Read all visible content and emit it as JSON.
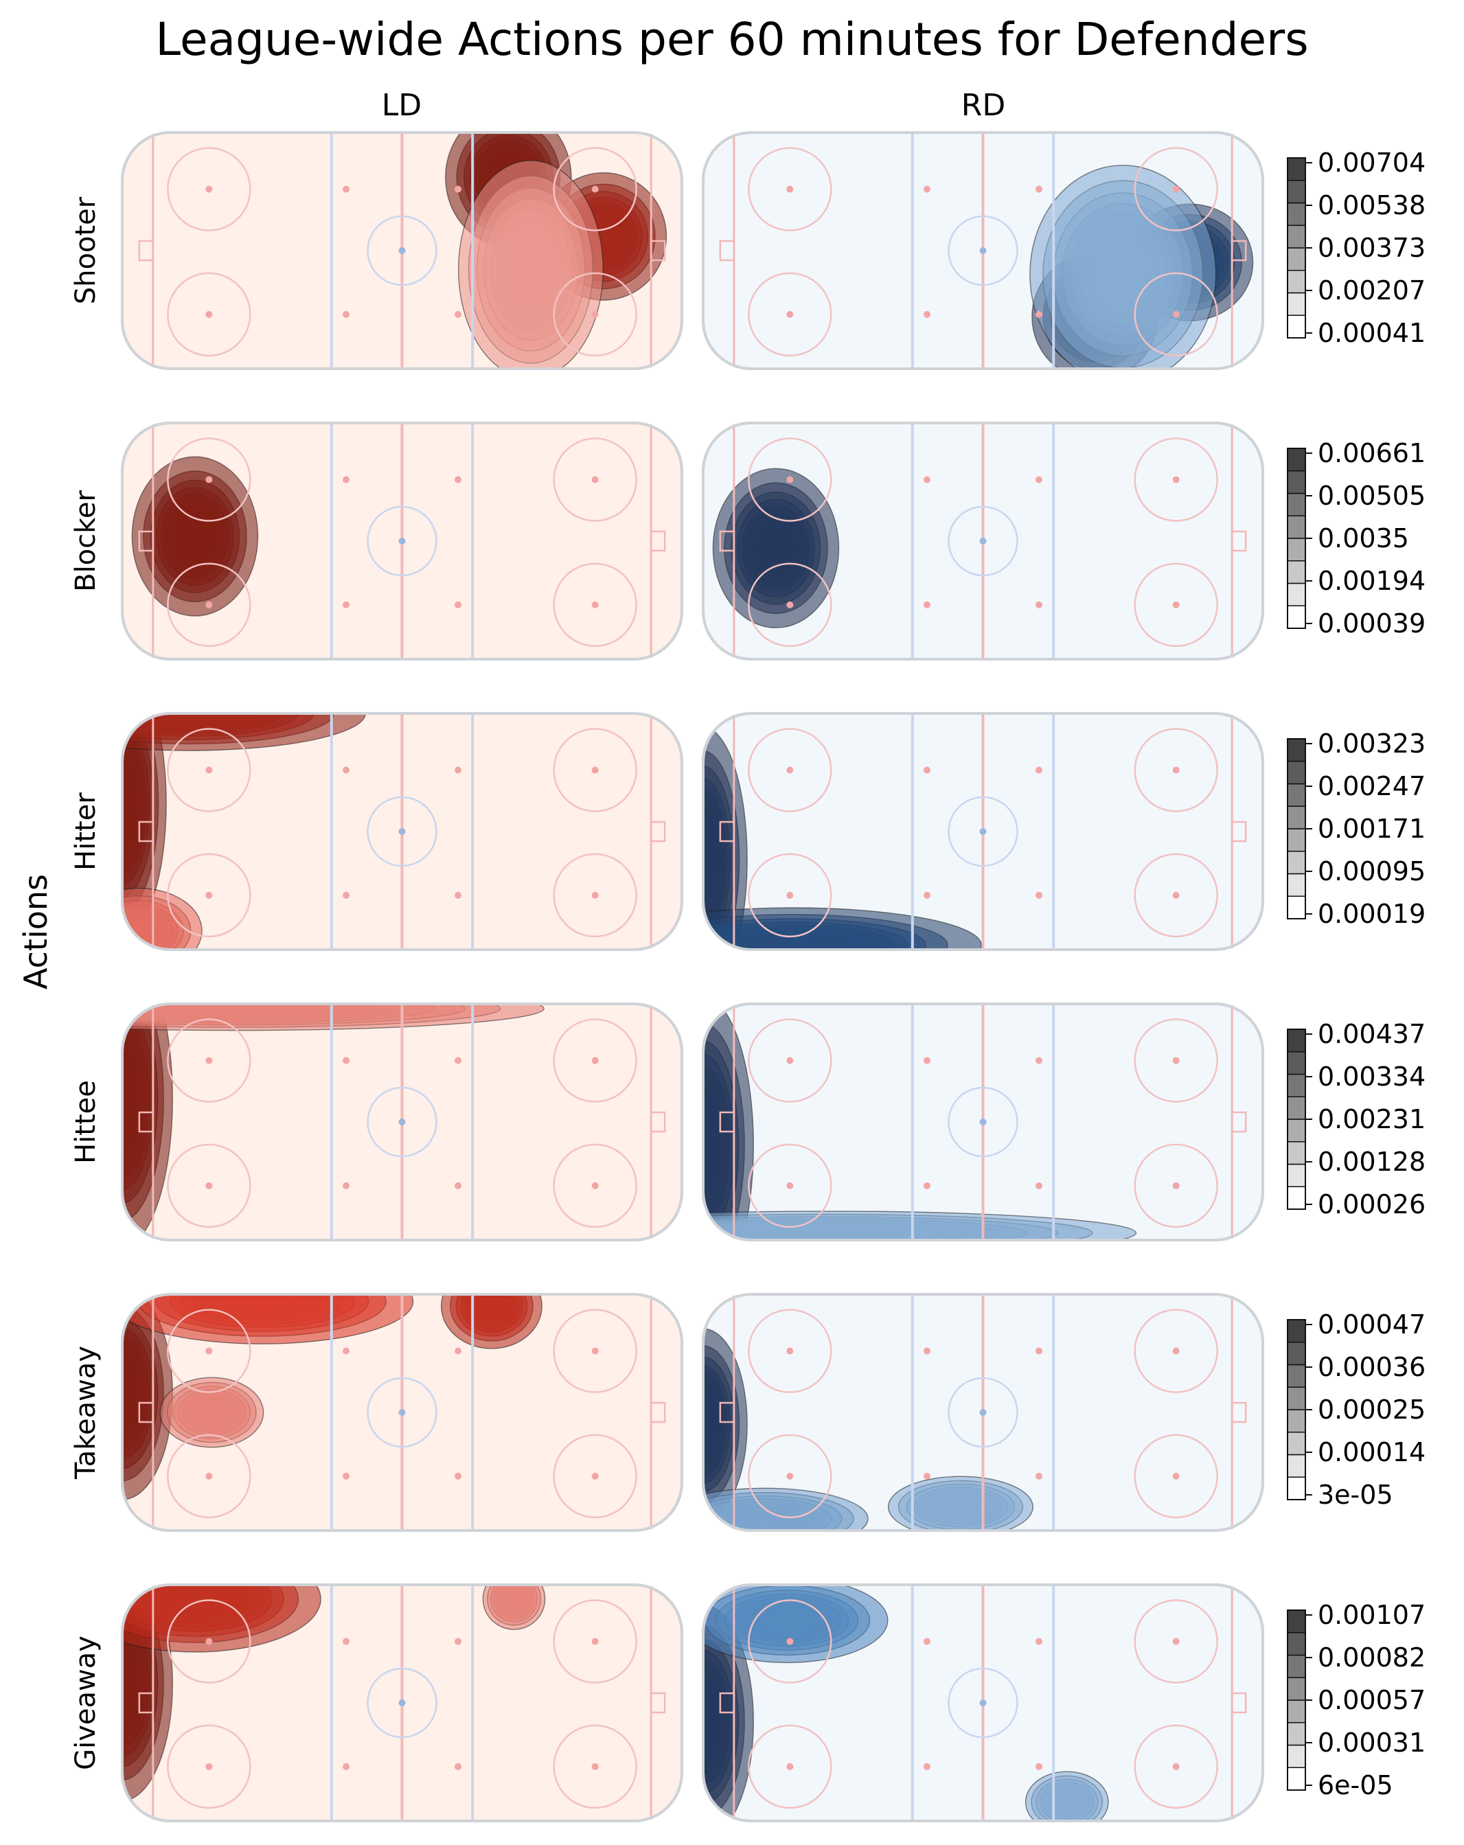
{
  "chart_data": {
    "type": "heatmap",
    "title": "League-wide Actions per 60 minutes for Defenders",
    "ylabel": "Actions",
    "columns": [
      "LD",
      "RD"
    ],
    "column_colors": {
      "LD": "#d7301f",
      "RD": "#2166ac"
    },
    "background": {
      "LD": "#fff0e9",
      "RD": "#f2f7fc"
    },
    "rows": [
      {
        "name": "Shooter",
        "colorbar_ticks": [
          "0.00704",
          "0.00538",
          "0.00373",
          "0.00207",
          "0.00041"
        ],
        "LD": {
          "peaks": [
            {
              "x": 0.69,
              "y": 0.19,
              "v": 1.0,
              "sx": 0.05,
              "sy": 0.13
            },
            {
              "x": 0.86,
              "y": 0.44,
              "v": 0.8,
              "sx": 0.05,
              "sy": 0.12
            },
            {
              "x": 0.73,
              "y": 0.58,
              "v": 0.25,
              "sx": 0.07,
              "sy": 0.25
            }
          ]
        },
        "RD": {
          "peaks": [
            {
              "x": 0.7,
              "y": 0.78,
              "v": 1.0,
              "sx": 0.05,
              "sy": 0.12
            },
            {
              "x": 0.87,
              "y": 0.55,
              "v": 0.85,
              "sx": 0.05,
              "sy": 0.11
            },
            {
              "x": 0.75,
              "y": 0.6,
              "v": 0.3,
              "sx": 0.09,
              "sy": 0.25
            }
          ]
        }
      },
      {
        "name": "Blocker",
        "colorbar_ticks": [
          "0.00661",
          "0.00505",
          "0.0035",
          "0.00194",
          "0.00039"
        ],
        "LD": {
          "peaks": [
            {
              "x": 0.13,
              "y": 0.48,
              "v": 1.0,
              "sx": 0.05,
              "sy": 0.15
            }
          ]
        },
        "RD": {
          "peaks": [
            {
              "x": 0.13,
              "y": 0.53,
              "v": 1.0,
              "sx": 0.05,
              "sy": 0.15
            }
          ]
        }
      },
      {
        "name": "Hitter",
        "colorbar_ticks": [
          "0.00323",
          "0.00247",
          "0.00171",
          "0.00095",
          "0.00019"
        ],
        "LD": {
          "peaks": [
            {
              "x": 0.0,
              "y": 0.38,
              "v": 1.0,
              "sx": 0.035,
              "sy": 0.25
            },
            {
              "x": 0.12,
              "y": 0.0,
              "v": 0.8,
              "sx": 0.14,
              "sy": 0.07
            },
            {
              "x": 0.03,
              "y": 0.92,
              "v": 0.4,
              "sx": 0.05,
              "sy": 0.08
            }
          ]
        },
        "RD": {
          "peaks": [
            {
              "x": 0.0,
              "y": 0.62,
              "v": 1.0,
              "sx": 0.035,
              "sy": 0.25
            },
            {
              "x": 0.16,
              "y": 0.98,
              "v": 0.8,
              "sx": 0.15,
              "sy": 0.07
            }
          ]
        }
      },
      {
        "name": "Hittee",
        "colorbar_ticks": [
          "0.00437",
          "0.00334",
          "0.00231",
          "0.00128",
          "0.00026"
        ],
        "LD": {
          "peaks": [
            {
              "x": 0.0,
              "y": 0.4,
              "v": 1.0,
              "sx": 0.04,
              "sy": 0.28
            },
            {
              "x": 0.2,
              "y": 0.02,
              "v": 0.35,
              "sx": 0.3,
              "sy": 0.05
            }
          ]
        },
        "RD": {
          "peaks": [
            {
              "x": 0.0,
              "y": 0.6,
              "v": 1.0,
              "sx": 0.04,
              "sy": 0.28
            },
            {
              "x": 0.22,
              "y": 0.97,
              "v": 0.3,
              "sx": 0.3,
              "sy": 0.05
            }
          ]
        }
      },
      {
        "name": "Takeaway",
        "colorbar_ticks": [
          "0.00047",
          "0.00036",
          "0.00025",
          "0.00014",
          "3e-05"
        ],
        "LD": {
          "peaks": [
            {
              "x": 0.0,
              "y": 0.42,
              "v": 1.0,
              "sx": 0.04,
              "sy": 0.2
            },
            {
              "x": 0.25,
              "y": 0.03,
              "v": 0.6,
              "sx": 0.12,
              "sy": 0.08
            },
            {
              "x": 0.66,
              "y": 0.05,
              "v": 0.7,
              "sx": 0.04,
              "sy": 0.08
            },
            {
              "x": 0.16,
              "y": 0.5,
              "v": 0.35,
              "sx": 0.05,
              "sy": 0.08
            }
          ]
        },
        "RD": {
          "peaks": [
            {
              "x": 0.0,
              "y": 0.55,
              "v": 1.0,
              "sx": 0.035,
              "sy": 0.18
            },
            {
              "x": 0.11,
              "y": 0.95,
              "v": 0.35,
              "sx": 0.1,
              "sy": 0.07
            },
            {
              "x": 0.46,
              "y": 0.9,
              "v": 0.3,
              "sx": 0.07,
              "sy": 0.07
            }
          ]
        }
      },
      {
        "name": "Giveaway",
        "colorbar_ticks": [
          "0.00107",
          "0.00082",
          "0.00057",
          "0.00031",
          "6e-05"
        ],
        "LD": {
          "peaks": [
            {
              "x": 0.0,
              "y": 0.42,
              "v": 1.0,
              "sx": 0.04,
              "sy": 0.22
            },
            {
              "x": 0.13,
              "y": 0.06,
              "v": 0.7,
              "sx": 0.1,
              "sy": 0.1
            },
            {
              "x": 0.7,
              "y": 0.06,
              "v": 0.35,
              "sx": 0.03,
              "sy": 0.07
            }
          ]
        },
        "RD": {
          "peaks": [
            {
              "x": 0.0,
              "y": 0.58,
              "v": 1.0,
              "sx": 0.04,
              "sy": 0.22
            },
            {
              "x": 0.15,
              "y": 0.15,
              "v": 0.45,
              "sx": 0.08,
              "sy": 0.08
            },
            {
              "x": 0.65,
              "y": 0.92,
              "v": 0.3,
              "sx": 0.04,
              "sy": 0.07
            }
          ]
        }
      }
    ]
  }
}
